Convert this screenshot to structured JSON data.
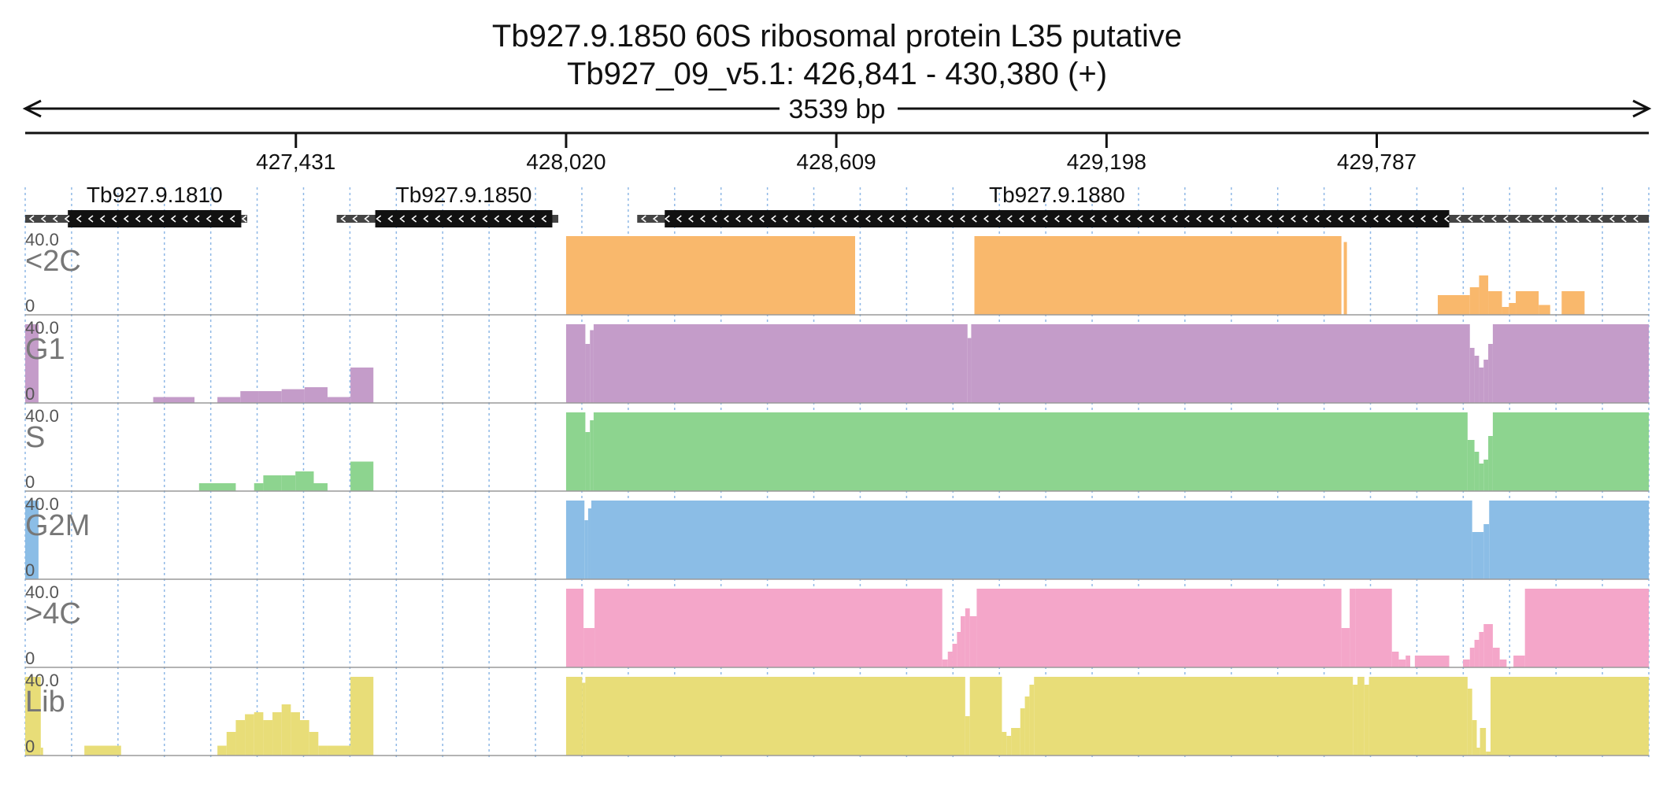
{
  "header": {
    "title_line_1": "Tb927.9.1850  60S ribosomal protein L35  putative",
    "title_line_2": "Tb927_09_v5.1: 426,841 - 430,380 (+)"
  },
  "chart_data": {
    "type": "area",
    "view": {
      "chromosome": "Tb927_09_v5.1",
      "start": 426841,
      "end": 430380,
      "strand": "+",
      "span_label": "3539 bp"
    },
    "ruler_ticks": [
      {
        "pos": 427431,
        "label": "427,431"
      },
      {
        "pos": 428020,
        "label": "428,020"
      },
      {
        "pos": 428609,
        "label": "428,609"
      },
      {
        "pos": 429198,
        "label": "429,198"
      },
      {
        "pos": 429787,
        "label": "429,787"
      }
    ],
    "genes": [
      {
        "id": "Tb927.9.1810",
        "utr_start": 426841,
        "cds_start": 426934,
        "cds_end": 427312,
        "utr_end": 427325,
        "strand": "-"
      },
      {
        "id": "Tb927.9.1850",
        "utr_start": 427520,
        "cds_start": 427604,
        "cds_end": 427990,
        "utr_end": 428003,
        "strand": "-"
      },
      {
        "id": "Tb927.9.1880",
        "utr_start": 428175,
        "cds_start": 428235,
        "cds_end": 429945,
        "utr_end": 430380,
        "strand": "-"
      }
    ],
    "ylim": [
      0,
      40
    ],
    "y_tick_labels": {
      "max": "40.0",
      "min": "0"
    },
    "tracks": [
      {
        "name": "<2C",
        "color": "#f9b86c",
        "segments": [
          [
            428020,
            428650,
            40
          ],
          [
            428910,
            429710,
            40
          ],
          [
            429715,
            429722,
            37
          ],
          [
            429920,
            429990,
            10
          ],
          [
            429990,
            430010,
            14
          ],
          [
            430010,
            430030,
            20
          ],
          [
            430030,
            430060,
            12
          ],
          [
            430060,
            430075,
            4
          ],
          [
            430075,
            430090,
            6
          ],
          [
            430090,
            430140,
            12
          ],
          [
            430140,
            430165,
            5
          ],
          [
            430190,
            430240,
            12
          ]
        ]
      },
      {
        "name": "G1",
        "color": "#c49cc9",
        "segments": [
          [
            426841,
            426870,
            40
          ],
          [
            427120,
            427210,
            3
          ],
          [
            427260,
            427310,
            3
          ],
          [
            427310,
            427350,
            6
          ],
          [
            427350,
            427400,
            6
          ],
          [
            427400,
            427450,
            7
          ],
          [
            427450,
            427500,
            8
          ],
          [
            427500,
            427550,
            3
          ],
          [
            427550,
            427600,
            18
          ],
          [
            428020,
            428062,
            40
          ],
          [
            428062,
            428072,
            30
          ],
          [
            428072,
            428080,
            37
          ],
          [
            428080,
            428895,
            40
          ],
          [
            428895,
            428903,
            33
          ],
          [
            428903,
            429990,
            40
          ],
          [
            429990,
            430000,
            28
          ],
          [
            430000,
            430010,
            24
          ],
          [
            430010,
            430020,
            18
          ],
          [
            430020,
            430030,
            22
          ],
          [
            430030,
            430040,
            30
          ],
          [
            430040,
            430380,
            40
          ]
        ]
      },
      {
        "name": "S",
        "color": "#8dd48f",
        "segments": [
          [
            427220,
            427300,
            4
          ],
          [
            427340,
            427360,
            4
          ],
          [
            427360,
            427400,
            8
          ],
          [
            427400,
            427430,
            8
          ],
          [
            427430,
            427470,
            10
          ],
          [
            427470,
            427500,
            4
          ],
          [
            427550,
            427600,
            15
          ],
          [
            428020,
            428062,
            40
          ],
          [
            428062,
            428072,
            30
          ],
          [
            428072,
            428080,
            36
          ],
          [
            428080,
            429985,
            40
          ],
          [
            429985,
            430000,
            26
          ],
          [
            430000,
            430010,
            20
          ],
          [
            430010,
            430020,
            14
          ],
          [
            430020,
            430030,
            16
          ],
          [
            430030,
            430040,
            28
          ],
          [
            430040,
            430380,
            40
          ]
        ]
      },
      {
        "name": "G2M",
        "color": "#8bbde6",
        "segments": [
          [
            426841,
            426870,
            40
          ],
          [
            428020,
            428060,
            40
          ],
          [
            428060,
            428068,
            30
          ],
          [
            428068,
            428075,
            36
          ],
          [
            428075,
            429995,
            40
          ],
          [
            429995,
            430020,
            24
          ],
          [
            430020,
            430032,
            28
          ],
          [
            430032,
            430380,
            40
          ]
        ]
      },
      {
        "name": ">4C",
        "color": "#f4a6c9",
        "segments": [
          [
            428020,
            428058,
            40
          ],
          [
            428058,
            428082,
            20
          ],
          [
            428082,
            428840,
            40
          ],
          [
            428840,
            428852,
            4
          ],
          [
            428852,
            428862,
            8
          ],
          [
            428862,
            428872,
            12
          ],
          [
            428872,
            428880,
            18
          ],
          [
            428880,
            428890,
            26
          ],
          [
            428890,
            428900,
            30
          ],
          [
            428900,
            428915,
            26
          ],
          [
            428915,
            429710,
            40
          ],
          [
            429710,
            429728,
            20
          ],
          [
            429728,
            429740,
            40
          ],
          [
            429740,
            429820,
            40
          ],
          [
            429820,
            429835,
            8
          ],
          [
            429835,
            429850,
            4
          ],
          [
            429850,
            429860,
            6
          ],
          [
            429870,
            429945,
            6
          ],
          [
            429975,
            429990,
            4
          ],
          [
            429990,
            430000,
            10
          ],
          [
            430000,
            430010,
            14
          ],
          [
            430010,
            430020,
            18
          ],
          [
            430020,
            430040,
            22
          ],
          [
            430040,
            430055,
            10
          ],
          [
            430055,
            430070,
            4
          ],
          [
            430085,
            430110,
            6
          ],
          [
            430110,
            430380,
            40
          ]
        ]
      },
      {
        "name": "Lib",
        "color": "#e8dd78",
        "segments": [
          [
            426841,
            426875,
            40
          ],
          [
            426875,
            426880,
            4
          ],
          [
            426970,
            427050,
            5
          ],
          [
            427260,
            427280,
            5
          ],
          [
            427280,
            427300,
            12
          ],
          [
            427300,
            427320,
            18
          ],
          [
            427320,
            427340,
            21
          ],
          [
            427340,
            427360,
            22
          ],
          [
            427360,
            427380,
            18
          ],
          [
            427380,
            427400,
            22
          ],
          [
            427400,
            427420,
            26
          ],
          [
            427420,
            427440,
            22
          ],
          [
            427440,
            427460,
            18
          ],
          [
            427460,
            427480,
            12
          ],
          [
            427480,
            427500,
            5
          ],
          [
            427500,
            427550,
            5
          ],
          [
            427550,
            427600,
            40
          ],
          [
            428020,
            428055,
            40
          ],
          [
            428055,
            428062,
            37
          ],
          [
            428062,
            428890,
            40
          ],
          [
            428890,
            428900,
            20
          ],
          [
            428900,
            428970,
            40
          ],
          [
            428970,
            428980,
            12
          ],
          [
            428980,
            428990,
            10
          ],
          [
            428990,
            429010,
            14
          ],
          [
            429010,
            429020,
            24
          ],
          [
            429020,
            429030,
            30
          ],
          [
            429030,
            429040,
            36
          ],
          [
            429040,
            429735,
            40
          ],
          [
            429735,
            429745,
            36
          ],
          [
            429745,
            429760,
            40
          ],
          [
            429760,
            429770,
            36
          ],
          [
            429770,
            429985,
            40
          ],
          [
            429985,
            429995,
            34
          ],
          [
            429995,
            430005,
            18
          ],
          [
            430005,
            430012,
            4
          ],
          [
            430012,
            430025,
            14
          ],
          [
            430025,
            430035,
            2
          ],
          [
            430035,
            430380,
            40
          ]
        ]
      }
    ]
  }
}
